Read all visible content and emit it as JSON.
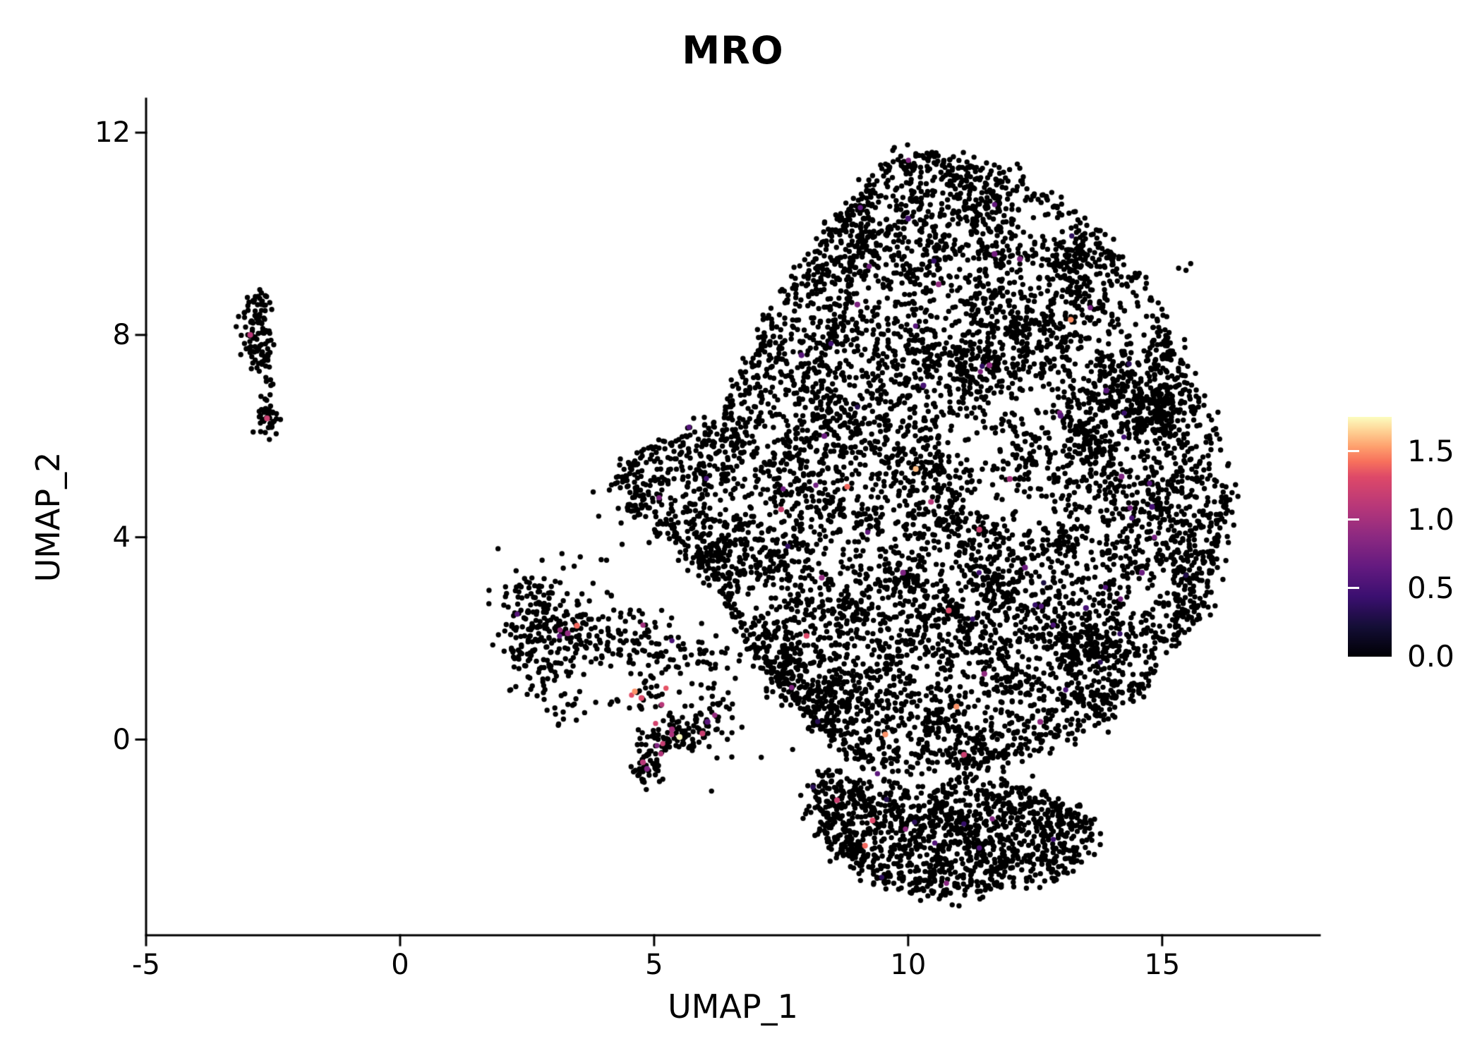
{
  "chart_data": {
    "type": "scatter",
    "title": "MRO",
    "xlabel": "UMAP_1",
    "ylabel": "UMAP_2",
    "xlim": [
      -5,
      18.1
    ],
    "ylim": [
      -3.87,
      12.67
    ],
    "x_ticks": [
      -5,
      0,
      5,
      10,
      15
    ],
    "x_tick_labels": [
      "-5",
      "0",
      "5",
      "10",
      "15"
    ],
    "y_ticks": [
      0,
      4,
      8,
      12
    ],
    "y_tick_labels": [
      "0",
      "4",
      "8",
      "12"
    ],
    "grid": false,
    "point_color": "#000000",
    "background": "#ffffff",
    "axis_color": "#000000",
    "colormap": "magma",
    "legend": {
      "position": "right",
      "type": "colorbar",
      "range": [
        0,
        1.75
      ],
      "tick_values": [
        0,
        0.5,
        1.0,
        1.5
      ],
      "tick_labels": [
        "0.0",
        "0.5",
        "1.0",
        "1.5"
      ],
      "stops": [
        {
          "t": 0.0,
          "c": "#000004"
        },
        {
          "t": 0.125,
          "c": "#140e36"
        },
        {
          "t": 0.25,
          "c": "#3b0f70"
        },
        {
          "t": 0.375,
          "c": "#641a80"
        },
        {
          "t": 0.5,
          "c": "#8c2981"
        },
        {
          "t": 0.625,
          "c": "#b73779"
        },
        {
          "t": 0.75,
          "c": "#de4968"
        },
        {
          "t": 0.8125,
          "c": "#f7705c"
        },
        {
          "t": 0.875,
          "c": "#fe9f6d"
        },
        {
          "t": 0.9375,
          "c": "#fecf92"
        },
        {
          "t": 1.0,
          "c": "#fcfdbf"
        }
      ]
    },
    "seed": 1337,
    "clusters": [
      {
        "name": "main-blob",
        "kind": "blob",
        "polygon": [
          [
            10.3,
            11.6
          ],
          [
            11.4,
            11.3
          ],
          [
            12.2,
            11.0
          ],
          [
            12.9,
            10.5
          ],
          [
            13.6,
            10.1
          ],
          [
            14.3,
            9.3
          ],
          [
            14.9,
            8.5
          ],
          [
            15.5,
            7.3
          ],
          [
            16.0,
            6.1
          ],
          [
            16.3,
            5.0
          ],
          [
            16.2,
            3.9
          ],
          [
            15.8,
            2.8
          ],
          [
            15.2,
            1.9
          ],
          [
            14.5,
            1.0
          ],
          [
            13.7,
            0.4
          ],
          [
            12.8,
            0.05
          ],
          [
            12.0,
            -0.3
          ],
          [
            11.2,
            -0.6
          ],
          [
            10.4,
            -0.45
          ],
          [
            9.6,
            -0.6
          ],
          [
            8.8,
            -0.2
          ],
          [
            8.2,
            0.3
          ],
          [
            7.6,
            0.9
          ],
          [
            7.0,
            1.7
          ],
          [
            6.5,
            2.6
          ],
          [
            6.1,
            3.3
          ],
          [
            5.5,
            3.9
          ],
          [
            4.8,
            4.4
          ],
          [
            4.35,
            5.0
          ],
          [
            4.55,
            5.5
          ],
          [
            5.3,
            5.9
          ],
          [
            6.2,
            6.3
          ],
          [
            6.7,
            7.0
          ],
          [
            7.1,
            7.9
          ],
          [
            7.6,
            8.8
          ],
          [
            8.2,
            9.7
          ],
          [
            8.9,
            10.6
          ],
          [
            9.6,
            11.3
          ]
        ],
        "micro_centers": 480,
        "points_min": 6,
        "points_max": 20,
        "sigma": 0.26,
        "uniform": 1200,
        "edge": 820,
        "edge_sigma": 0.13,
        "color_prob": 0.005,
        "value_range": [
          0.25,
          0.85
        ]
      },
      {
        "name": "bottom-lobe",
        "kind": "blob",
        "polygon": [
          [
            8.6,
            -0.7
          ],
          [
            9.4,
            -1.0
          ],
          [
            10.2,
            -1.1
          ],
          [
            11.0,
            -0.9
          ],
          [
            11.9,
            -1.0
          ],
          [
            12.7,
            -1.1
          ],
          [
            13.4,
            -1.5
          ],
          [
            13.6,
            -2.0
          ],
          [
            13.2,
            -2.5
          ],
          [
            12.4,
            -2.8
          ],
          [
            11.5,
            -3.0
          ],
          [
            10.6,
            -3.05
          ],
          [
            9.8,
            -2.9
          ],
          [
            9.1,
            -2.6
          ],
          [
            8.5,
            -2.1
          ],
          [
            8.15,
            -1.5
          ],
          [
            8.2,
            -1.0
          ]
        ],
        "micro_centers": 85,
        "points_min": 6,
        "points_max": 16,
        "sigma": 0.22,
        "uniform": 280,
        "edge": 280,
        "edge_sigma": 0.12,
        "color_prob": 0.008,
        "value_range": [
          0.3,
          1.0
        ]
      },
      {
        "name": "mid-left-cluster",
        "kind": "gauss",
        "center": [
          2.8,
          2.4
        ],
        "sigma": [
          0.45,
          0.55
        ],
        "count": 150,
        "color_prob": 0.012,
        "value_range": [
          0.5,
          1.3
        ]
      },
      {
        "kind": "gauss",
        "center": [
          2.65,
          1.55
        ],
        "sigma": [
          0.3,
          0.4
        ],
        "count": 55,
        "color_prob": 0.01,
        "value_range": [
          0.5,
          1.2
        ]
      },
      {
        "kind": "gauss",
        "center": [
          3.5,
          2.1
        ],
        "sigma": [
          0.55,
          0.45
        ],
        "count": 75,
        "color_prob": 0.02,
        "value_range": [
          0.5,
          1.4
        ]
      },
      {
        "kind": "gauss",
        "center": [
          4.5,
          2.0
        ],
        "sigma": [
          0.55,
          0.28
        ],
        "count": 70,
        "color_prob": 0.02,
        "value_range": [
          0.5,
          1.3
        ]
      },
      {
        "kind": "gauss",
        "center": [
          5.5,
          1.75
        ],
        "sigma": [
          0.45,
          0.3
        ],
        "count": 45,
        "color_prob": 0.015,
        "value_range": [
          0.5,
          1.2
        ]
      },
      {
        "kind": "gauss",
        "center": [
          3.2,
          0.9
        ],
        "sigma": [
          0.35,
          0.4
        ],
        "count": 22,
        "color_prob": 0.01,
        "value_range": [
          0.5,
          1.0
        ]
      },
      {
        "kind": "gauss",
        "center": [
          4.7,
          0.9
        ],
        "sigma": [
          0.3,
          0.3
        ],
        "count": 32,
        "color_prob": 0.03,
        "value_range": [
          0.6,
          1.5
        ]
      },
      {
        "kind": "gauss",
        "center": [
          5.75,
          0.3
        ],
        "sigma": [
          0.4,
          0.35
        ],
        "count": 65,
        "color_prob": 0.03,
        "value_range": [
          0.5,
          1.3
        ]
      },
      {
        "kind": "gauss",
        "center": [
          4.82,
          -0.5
        ],
        "sigma": [
          0.16,
          0.22
        ],
        "count": 48,
        "color_prob": 0.03,
        "value_range": [
          0.6,
          1.2
        ]
      },
      {
        "kind": "gauss",
        "center": [
          5.45,
          0.05
        ],
        "sigma": [
          0.35,
          0.22
        ],
        "count": 55,
        "color_prob": 0.03,
        "value_range": [
          0.6,
          1.4
        ]
      },
      {
        "kind": "gauss",
        "center": [
          6.1,
          1.2
        ],
        "sigma": [
          0.25,
          0.35
        ],
        "count": 18,
        "color_prob": 0.01,
        "value_range": [
          0.5,
          1.0
        ]
      },
      {
        "name": "left-small-cluster",
        "kind": "gauss",
        "center": [
          -2.85,
          8.15
        ],
        "sigma": [
          0.17,
          0.4
        ],
        "count": 75,
        "color_prob": 0,
        "value_range": [
          0,
          0
        ]
      },
      {
        "kind": "gauss",
        "center": [
          -2.75,
          8.65
        ],
        "sigma": [
          0.14,
          0.15
        ],
        "count": 16,
        "color_prob": 0,
        "value_range": [
          0,
          0
        ]
      },
      {
        "kind": "gauss",
        "center": [
          -2.7,
          7.35
        ],
        "sigma": [
          0.1,
          0.3
        ],
        "count": 22,
        "color_prob": 0,
        "value_range": [
          0,
          0
        ]
      },
      {
        "kind": "gauss",
        "center": [
          -2.6,
          6.4
        ],
        "sigma": [
          0.11,
          0.22
        ],
        "count": 42,
        "color_prob": 0,
        "value_range": [
          0,
          0
        ]
      },
      {
        "kind": "gauss",
        "center": [
          6.8,
          0.3
        ],
        "sigma": [
          1.1,
          0.7
        ],
        "count": 14,
        "color_prob": 0,
        "value_range": [
          0,
          0
        ]
      },
      {
        "kind": "gauss",
        "center": [
          4.05,
          3.85
        ],
        "sigma": [
          0.45,
          0.35
        ],
        "count": 8,
        "color_prob": 0,
        "value_range": [
          0,
          0
        ]
      },
      {
        "kind": "gauss",
        "center": [
          15.4,
          9.4
        ],
        "sigma": [
          0.15,
          0.12
        ],
        "count": 3,
        "color_prob": 0,
        "value_range": [
          0,
          0
        ]
      }
    ],
    "highlight_points": [
      [
        -2.95,
        8.0,
        1.1
      ],
      [
        -2.62,
        6.35,
        1.2
      ],
      [
        3.48,
        2.25,
        1.4
      ],
      [
        3.3,
        2.1,
        0.9
      ],
      [
        4.62,
        0.95,
        1.5
      ],
      [
        4.75,
        0.82,
        1.3
      ],
      [
        5.5,
        0.05,
        1.75
      ],
      [
        5.35,
        0.2,
        1.0
      ],
      [
        5.95,
        0.12,
        1.2
      ],
      [
        4.78,
        -0.45,
        1.1
      ],
      [
        4.86,
        -0.58,
        0.8
      ],
      [
        6.05,
        0.35,
        0.6
      ],
      [
        7.5,
        4.55,
        1.2
      ],
      [
        8.0,
        2.05,
        1.3
      ],
      [
        8.35,
        6.0,
        0.7
      ],
      [
        9.0,
        8.6,
        0.8
      ],
      [
        9.55,
        0.1,
        1.5
      ],
      [
        9.3,
        -1.6,
        1.3
      ],
      [
        8.6,
        -1.2,
        1.2
      ],
      [
        9.15,
        -2.1,
        1.4
      ],
      [
        10.15,
        5.35,
        1.6
      ],
      [
        10.45,
        4.7,
        1.1
      ],
      [
        10.8,
        2.55,
        1.3
      ],
      [
        10.95,
        0.65,
        1.5
      ],
      [
        11.1,
        -0.3,
        1.2
      ],
      [
        11.5,
        1.3,
        0.9
      ],
      [
        12.0,
        5.15,
        1.0
      ],
      [
        12.3,
        3.4,
        0.7
      ],
      [
        13.2,
        8.3,
        1.5
      ],
      [
        12.2,
        9.5,
        0.8
      ],
      [
        11.6,
        7.4,
        0.9
      ],
      [
        13.0,
        6.4,
        0.6
      ],
      [
        14.2,
        5.2,
        0.8
      ],
      [
        14.6,
        3.3,
        0.7
      ],
      [
        10.6,
        9.0,
        0.9
      ],
      [
        8.8,
        5.0,
        1.4
      ],
      [
        9.9,
        3.3,
        0.8
      ],
      [
        11.4,
        4.15,
        1.2
      ],
      [
        12.6,
        0.35,
        0.9
      ],
      [
        13.5,
        2.6,
        0.5
      ],
      [
        8.3,
        3.2,
        0.9
      ],
      [
        7.9,
        7.6,
        0.6
      ],
      [
        10.3,
        7.0,
        0.5
      ],
      [
        13.9,
        6.9,
        0.6
      ],
      [
        14.8,
        4.6,
        0.5
      ],
      [
        11.7,
        9.6,
        0.75
      ],
      [
        10.0,
        10.3,
        0.5
      ]
    ]
  }
}
